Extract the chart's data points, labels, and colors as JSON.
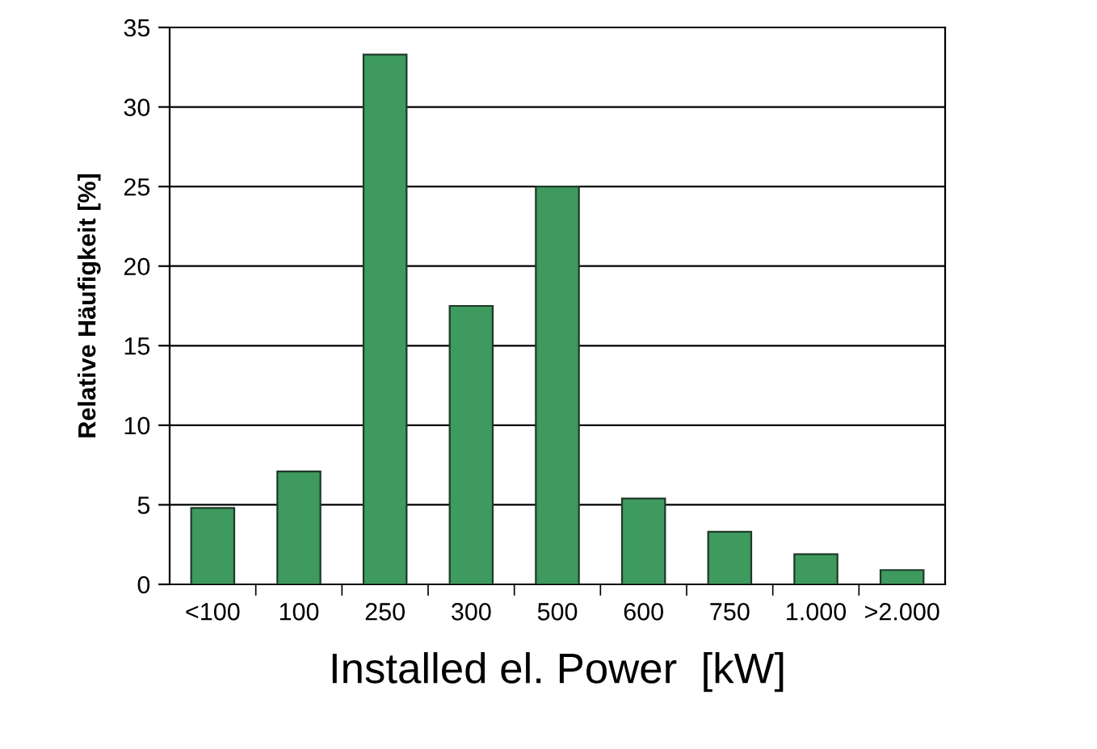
{
  "chart_data": {
    "type": "bar",
    "xlabel": "Installed el. Power  [kW]",
    "ylabel": "Relative Häufigkeit [%]",
    "categories": [
      "<100",
      "100",
      "250",
      "300",
      "500",
      "600",
      "750",
      "1.000",
      ">2.000"
    ],
    "values": [
      4.8,
      7.1,
      33.3,
      17.5,
      25,
      5.4,
      3.3,
      1.9,
      0.9
    ],
    "color": "#3e9a5e",
    "ylim": [
      0,
      35
    ],
    "yticks": [
      0,
      5,
      10,
      15,
      20,
      25,
      30,
      35
    ],
    "grid": "y"
  }
}
